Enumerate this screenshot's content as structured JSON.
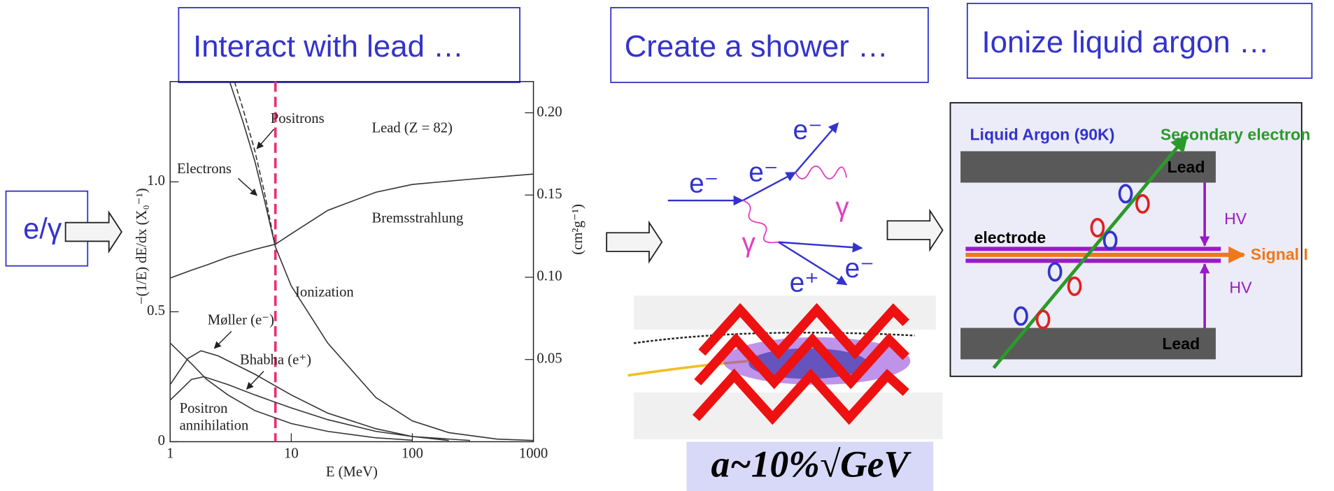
{
  "panels": [
    {
      "title": "Interact with lead …"
    },
    {
      "title": "Create a shower …"
    },
    {
      "title": "Ionize liquid argon …"
    }
  ],
  "input_label": "e/γ",
  "chart_data": {
    "type": "line",
    "xlog": true,
    "xlim": [
      1,
      1000
    ],
    "xticks": [
      1,
      10,
      100,
      1000
    ],
    "ylim": [
      0,
      1.386
    ],
    "yticks": [
      0,
      0.5,
      {
        "value": 1,
        "label": "1.0"
      }
    ],
    "y2lim": [
      0,
      0.219
    ],
    "y2ticks": [
      0.05,
      {
        "value": 0.1,
        "label": "0.10"
      },
      0.15,
      {
        "value": 0.2,
        "label": "0.20"
      }
    ],
    "xlabel": "E (MeV)",
    "ylabel": "−(1/E) dE/dx (X₀⁻¹)",
    "y2label": "(cm²g⁻¹)",
    "annotation": "Lead (Z = 82)",
    "vline": {
      "x": 7.4,
      "color": "#e8306e"
    },
    "series": [
      {
        "name": "Bremsstrahlung",
        "color": "#333333",
        "dash": false,
        "x": [
          1,
          1.5,
          2,
          3,
          5,
          7.4,
          10,
          20,
          50,
          100,
          300,
          1000
        ],
        "values": [
          0.63,
          0.66,
          0.68,
          0.71,
          0.74,
          0.76,
          0.8,
          0.89,
          0.96,
          0.99,
          1.01,
          1.03
        ]
      },
      {
        "name": "Ionization",
        "color": "#333333",
        "dash": false,
        "x": [
          7.4,
          10,
          20,
          50,
          100,
          200,
          500,
          1000
        ],
        "values": [
          0.75,
          0.6,
          0.38,
          0.17,
          0.08,
          0.035,
          0.01,
          0.005
        ]
      },
      {
        "name": "Electrons",
        "color": "#333333",
        "dash": false,
        "x": [
          3.1,
          4,
          5,
          6,
          7.4
        ],
        "values": [
          1.386,
          1.23,
          1.08,
          0.93,
          0.75
        ]
      },
      {
        "name": "Positrons",
        "color": "#333333",
        "dash": true,
        "x": [
          3.4,
          4,
          5,
          6,
          7.4
        ],
        "values": [
          1.386,
          1.28,
          1.12,
          0.96,
          0.75
        ]
      },
      {
        "name": "Møller (e⁻)",
        "color": "#333333",
        "dash": false,
        "x": [
          1,
          1.4,
          1.8,
          2.5,
          5,
          10,
          20,
          50,
          100,
          200
        ],
        "values": [
          0.22,
          0.32,
          0.35,
          0.33,
          0.26,
          0.18,
          0.11,
          0.05,
          0.02,
          0.005
        ]
      },
      {
        "name": "Bhabha (e⁺)",
        "color": "#333333",
        "dash": false,
        "x": [
          1,
          1.5,
          1.9,
          3,
          5,
          10,
          20,
          50,
          100,
          300
        ],
        "values": [
          0.16,
          0.24,
          0.25,
          0.22,
          0.18,
          0.13,
          0.085,
          0.04,
          0.02,
          0.005
        ]
      },
      {
        "name": "Positron annihilation",
        "color": "#333333",
        "dash": false,
        "x": [
          1,
          1.5,
          2,
          3,
          5,
          10,
          20,
          50,
          100
        ],
        "values": [
          0.38,
          0.3,
          0.24,
          0.18,
          0.12,
          0.07,
          0.04,
          0.015,
          0.006
        ]
      }
    ]
  },
  "shower": {
    "labels": [
      "e⁻",
      "e⁻",
      "e⁻",
      "γ",
      "γ",
      "e⁺",
      "e⁻"
    ],
    "resolution": "a~10%√GeV"
  },
  "argon": {
    "medium": "Liquid Argon (90K)",
    "secondary": "Secondary electron",
    "lead_top": "Lead",
    "lead_bottom": "Lead",
    "electrode": "electrode",
    "signal": "Signal I",
    "hv_top": "HV",
    "hv_bottom": "HV"
  }
}
